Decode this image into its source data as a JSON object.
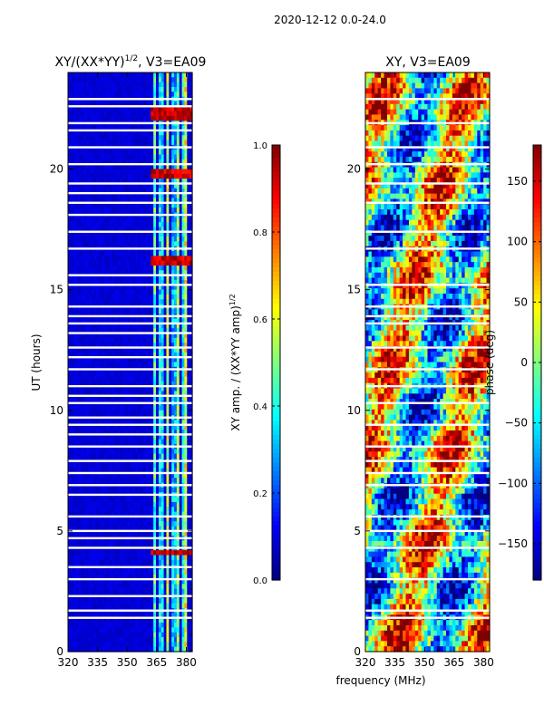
{
  "figure": {
    "suptitle": "2020-12-12 0.0-24.0",
    "shared_xlabel": "frequency (MHz)"
  },
  "chart_data": [
    {
      "type": "heatmap",
      "title": "XY/(XX*YY)^{1/2}, V3=EA09",
      "title_main": "XY/(XX*YY)",
      "title_sup": "1/2",
      "title_tail": ", V3=EA09",
      "xlabel": "frequency (MHz)",
      "ylabel": "UT (hours)",
      "xlim": [
        320,
        383
      ],
      "ylim": [
        0,
        24
      ],
      "xticks": [
        320,
        335,
        350,
        365,
        380
      ],
      "yticks": [
        0,
        5,
        10,
        15,
        20
      ],
      "colormap": "jet",
      "colorbar": {
        "label": "XY amp. / (XX*YY amp)^{1/2}",
        "label_main": "XY amp. / (XX*YY amp)",
        "label_sup": "1/2",
        "range": [
          0.0,
          1.0
        ],
        "ticks": [
          "0.0",
          "0.2",
          "0.4",
          "0.6",
          "0.8",
          "1.0"
        ],
        "tick_values": [
          0.0,
          0.2,
          0.4,
          0.6,
          0.8,
          1.0
        ]
      },
      "background_value": 0.06,
      "bright_channels": [
        {
          "x": 364.0,
          "value": 0.45
        },
        {
          "x": 367.0,
          "value": 0.35
        },
        {
          "x": 370.5,
          "value": 0.55
        },
        {
          "x": 373.5,
          "value": 0.3
        },
        {
          "x": 375.5,
          "value": 0.5
        },
        {
          "x": 378.5,
          "value": 0.4
        },
        {
          "x": 380.0,
          "value": 0.6
        }
      ],
      "hot_rows_hours": [
        4.15,
        22.5,
        22.2,
        19.8,
        16.2
      ],
      "flagged_hours": [
        1.4,
        1.7,
        2.3,
        3.0,
        3.5,
        4.3,
        4.7,
        5.0,
        5.6,
        6.5,
        6.9,
        7.4,
        7.9,
        8.5,
        9.0,
        9.4,
        9.7,
        10.3,
        10.6,
        11.0,
        11.7,
        12.2,
        12.6,
        13.2,
        13.6,
        13.9,
        14.3,
        15.2,
        15.6,
        16.7,
        17.4,
        18.1,
        18.6,
        19.0,
        19.4,
        20.2,
        20.9,
        21.6,
        21.9,
        22.6,
        22.9
      ]
    },
    {
      "type": "heatmap",
      "title": "XY, V3=EA09",
      "xlabel": "frequency (MHz)",
      "ylabel": "",
      "xlim": [
        320,
        383
      ],
      "ylim": [
        0,
        24
      ],
      "xticks": [
        320,
        335,
        350,
        365,
        380
      ],
      "yticks": [
        0,
        5,
        10,
        15,
        20
      ],
      "colormap": "jet",
      "colorbar": {
        "label": "phase (deg)",
        "range": [
          -180,
          180
        ],
        "ticks": [
          "−150",
          "−100",
          "−50",
          "0",
          "50",
          "100",
          "150"
        ],
        "tick_values": [
          -150,
          -100,
          -50,
          0,
          50,
          100,
          150
        ]
      },
      "flagged_hours": [
        1.4,
        1.7,
        3.0,
        4.3,
        5.0,
        5.6,
        6.9,
        7.4,
        7.9,
        8.5,
        9.4,
        10.3,
        11.0,
        11.7,
        12.6,
        13.6,
        13.9,
        14.3,
        15.2,
        16.7,
        17.4,
        18.6,
        19.4,
        20.2,
        20.9,
        21.9,
        22.9
      ]
    }
  ]
}
